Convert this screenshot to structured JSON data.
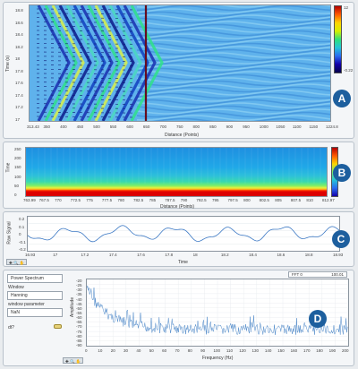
{
  "panelA": {
    "badge": "A",
    "ylabel": "Time (s)",
    "xlabel": "Distance (Points)",
    "yticks": [
      "18.8",
      "18.6",
      "18.4",
      "18.2",
      "18",
      "17.8",
      "17.6",
      "17.4",
      "17.2",
      "17"
    ],
    "xticks": [
      "313.43",
      "350",
      "400",
      "450",
      "500",
      "550",
      "600",
      "650",
      "700",
      "750",
      "800",
      "850",
      "900",
      "950",
      "1000",
      "1050",
      "1100",
      "1150",
      "1224.8"
    ],
    "cbar_ticks": [
      "12",
      "-0.22"
    ]
  },
  "panelB": {
    "badge": "B",
    "ylabel": "Time",
    "xlabel": "Distance (Points)",
    "yticks": [
      "250",
      "200",
      "150",
      "100",
      "50",
      "0"
    ],
    "xticks": [
      "763.99",
      "767.5",
      "770",
      "772.5",
      "775",
      "777.5",
      "780",
      "782.5",
      "785",
      "787.5",
      "790",
      "792.5",
      "795",
      "797.5",
      "800",
      "802.5",
      "805",
      "807.5",
      "810",
      "812.97"
    ],
    "cbar_ticks": [
      "",
      "",
      ""
    ]
  },
  "panelC": {
    "badge": "C",
    "ylabel": "Raw Signal",
    "xlabel": "Time",
    "yticks": [
      "0.2",
      "0.1",
      "0",
      "-0.1",
      "-0.2"
    ],
    "xticks": [
      "16.93",
      "17",
      "17.2",
      "17.4",
      "17.6",
      "17.8",
      "18",
      "18.2",
      "18.4",
      "18.6",
      "18.8",
      "18.93"
    ],
    "toolbar": "✚ 🔍 ✋"
  },
  "panelD": {
    "badge": "D",
    "ylabel": "Amplitude",
    "xlabel": "Frequency (Hz)",
    "yticks": [
      "-20",
      "-25",
      "-30",
      "-35",
      "-40",
      "-45",
      "-50",
      "-55",
      "-60",
      "-65",
      "-70",
      "-75",
      "-80",
      "-85",
      "-90"
    ],
    "xticks": [
      "0",
      "10",
      "20",
      "30",
      "40",
      "50",
      "60",
      "70",
      "80",
      "90",
      "100",
      "110",
      "120",
      "130",
      "140",
      "150",
      "160",
      "170",
      "180",
      "190",
      "200"
    ],
    "fft_label": "FFT  0",
    "fft_value": "100.01",
    "controls": {
      "power_spectrum": "Power Spectrum",
      "window_label": "Window",
      "window_value": "Hanning",
      "window_param_label": "window parameter",
      "window_param_value": "NaN",
      "dt_label": "dt?"
    },
    "toolbar": "✚ 🔍 ✋"
  }
}
